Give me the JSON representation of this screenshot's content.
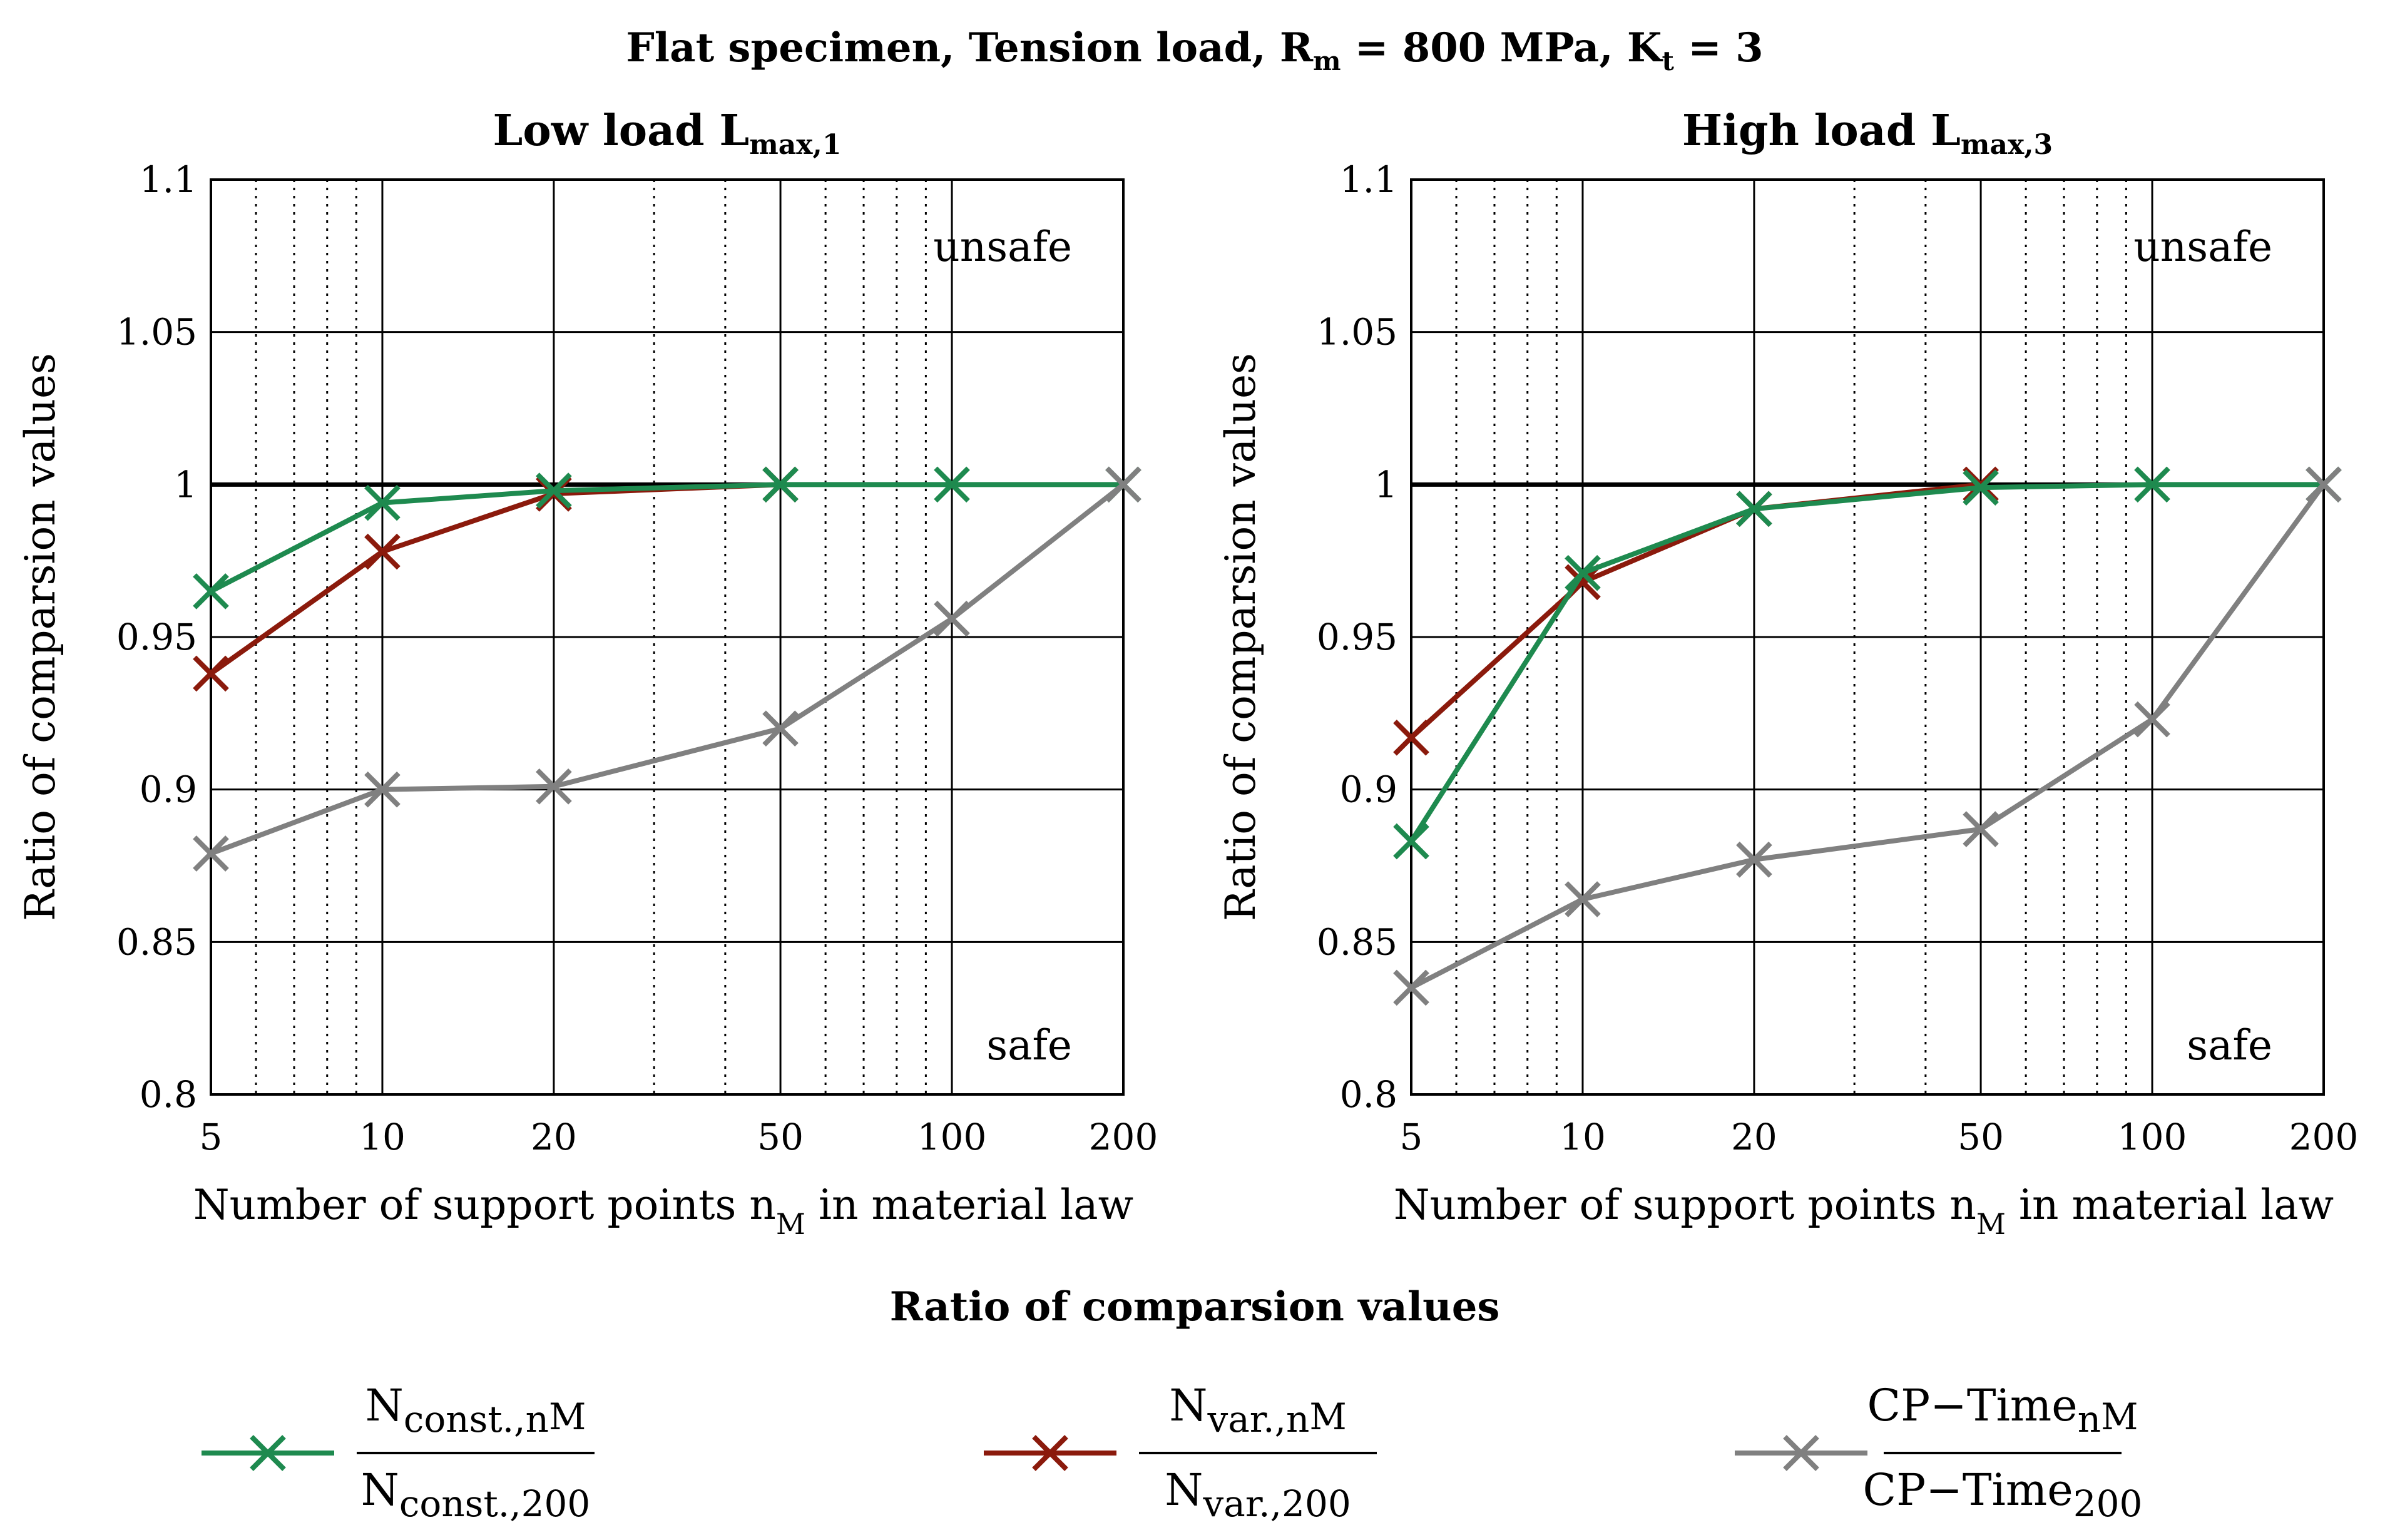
{
  "figure": {
    "title": "Flat specimen, Tension load, R",
    "title_sub": "m",
    "title_mid": " = 800 MPa, K",
    "title_sub2": "t",
    "title_end": " = 3",
    "legend_title": "Ratio of comparsion values"
  },
  "colors": {
    "nconst": "#1e8a4f",
    "nvar": "#8b1a0c",
    "cptime": "#808080",
    "reference": "#000000"
  },
  "legend": [
    {
      "key": "nconst",
      "num_main": "N",
      "num_sub": "const.,n",
      "num_subsub": "M",
      "den_main": "N",
      "den_sub": "const.,200"
    },
    {
      "key": "nvar",
      "num_main": "N",
      "num_sub": "var.,n",
      "num_subsub": "M",
      "den_main": "N",
      "den_sub": "var.,200"
    },
    {
      "key": "cptime",
      "num_main": "CP−Time",
      "num_sub": "n",
      "num_subsub": "M",
      "den_main": "CP−Time",
      "den_sub": "200"
    }
  ],
  "chart_data": [
    {
      "type": "line",
      "title": "Low load L",
      "title_sub": "max,1",
      "xlabel": "Number of support points n",
      "xlabel_sub": "M",
      "xlabel_end": " in material law",
      "ylabel": "Ratio of comparsion values",
      "xscale": "log",
      "xlim": [
        5,
        200
      ],
      "ylim": [
        0.8,
        1.1
      ],
      "xticks": [
        5,
        10,
        20,
        50,
        100,
        200
      ],
      "xtick_labels": [
        "5",
        "10",
        "20",
        "50",
        "100",
        "200"
      ],
      "yticks": [
        0.8,
        0.85,
        0.9,
        0.95,
        1,
        1.05,
        1.1
      ],
      "ytick_labels": [
        "0.8",
        "0.85",
        "0.9",
        "0.95",
        "1",
        "1.05",
        "1.1"
      ],
      "annotations": [
        "unsafe",
        "safe"
      ],
      "x": [
        5,
        10,
        20,
        50,
        100,
        200
      ],
      "series": [
        {
          "key": "nvar",
          "x": [
            5,
            10,
            20,
            50
          ],
          "values": [
            0.938,
            0.978,
            0.997,
            1.0
          ]
        },
        {
          "key": "nconst",
          "x": [
            5,
            10,
            20,
            50,
            100,
            200
          ],
          "values": [
            0.965,
            0.994,
            0.998,
            1.0,
            1.0,
            1.0
          ]
        },
        {
          "key": "cptime",
          "x": [
            5,
            10,
            20,
            50,
            100,
            200
          ],
          "values": [
            0.879,
            0.9,
            0.901,
            0.92,
            0.956,
            1.0
          ]
        }
      ]
    },
    {
      "type": "line",
      "title": "High load L",
      "title_sub": "max,3",
      "xlabel": "Number of support points n",
      "xlabel_sub": "M",
      "xlabel_end": " in material law",
      "ylabel": "Ratio of comparsion values",
      "xscale": "log",
      "xlim": [
        5,
        200
      ],
      "ylim": [
        0.8,
        1.1
      ],
      "xticks": [
        5,
        10,
        20,
        50,
        100,
        200
      ],
      "xtick_labels": [
        "5",
        "10",
        "20",
        "50",
        "100",
        "200"
      ],
      "yticks": [
        0.8,
        0.85,
        0.9,
        0.95,
        1,
        1.05,
        1.1
      ],
      "ytick_labels": [
        "0.8",
        "0.85",
        "0.9",
        "0.95",
        "1",
        "1.05",
        "1.1"
      ],
      "annotations": [
        "unsafe",
        "safe"
      ],
      "x": [
        5,
        10,
        20,
        50,
        100,
        200
      ],
      "series": [
        {
          "key": "nvar",
          "x": [
            5,
            10,
            20,
            50
          ],
          "values": [
            0.917,
            0.968,
            0.992,
            1.0
          ]
        },
        {
          "key": "nconst",
          "x": [
            5,
            10,
            20,
            50,
            100,
            200
          ],
          "values": [
            0.883,
            0.971,
            0.992,
            0.999,
            1.0,
            1.0
          ]
        },
        {
          "key": "cptime",
          "x": [
            5,
            10,
            20,
            50,
            100,
            200
          ],
          "values": [
            0.835,
            0.864,
            0.877,
            0.887,
            0.923,
            1.0
          ]
        }
      ]
    }
  ]
}
